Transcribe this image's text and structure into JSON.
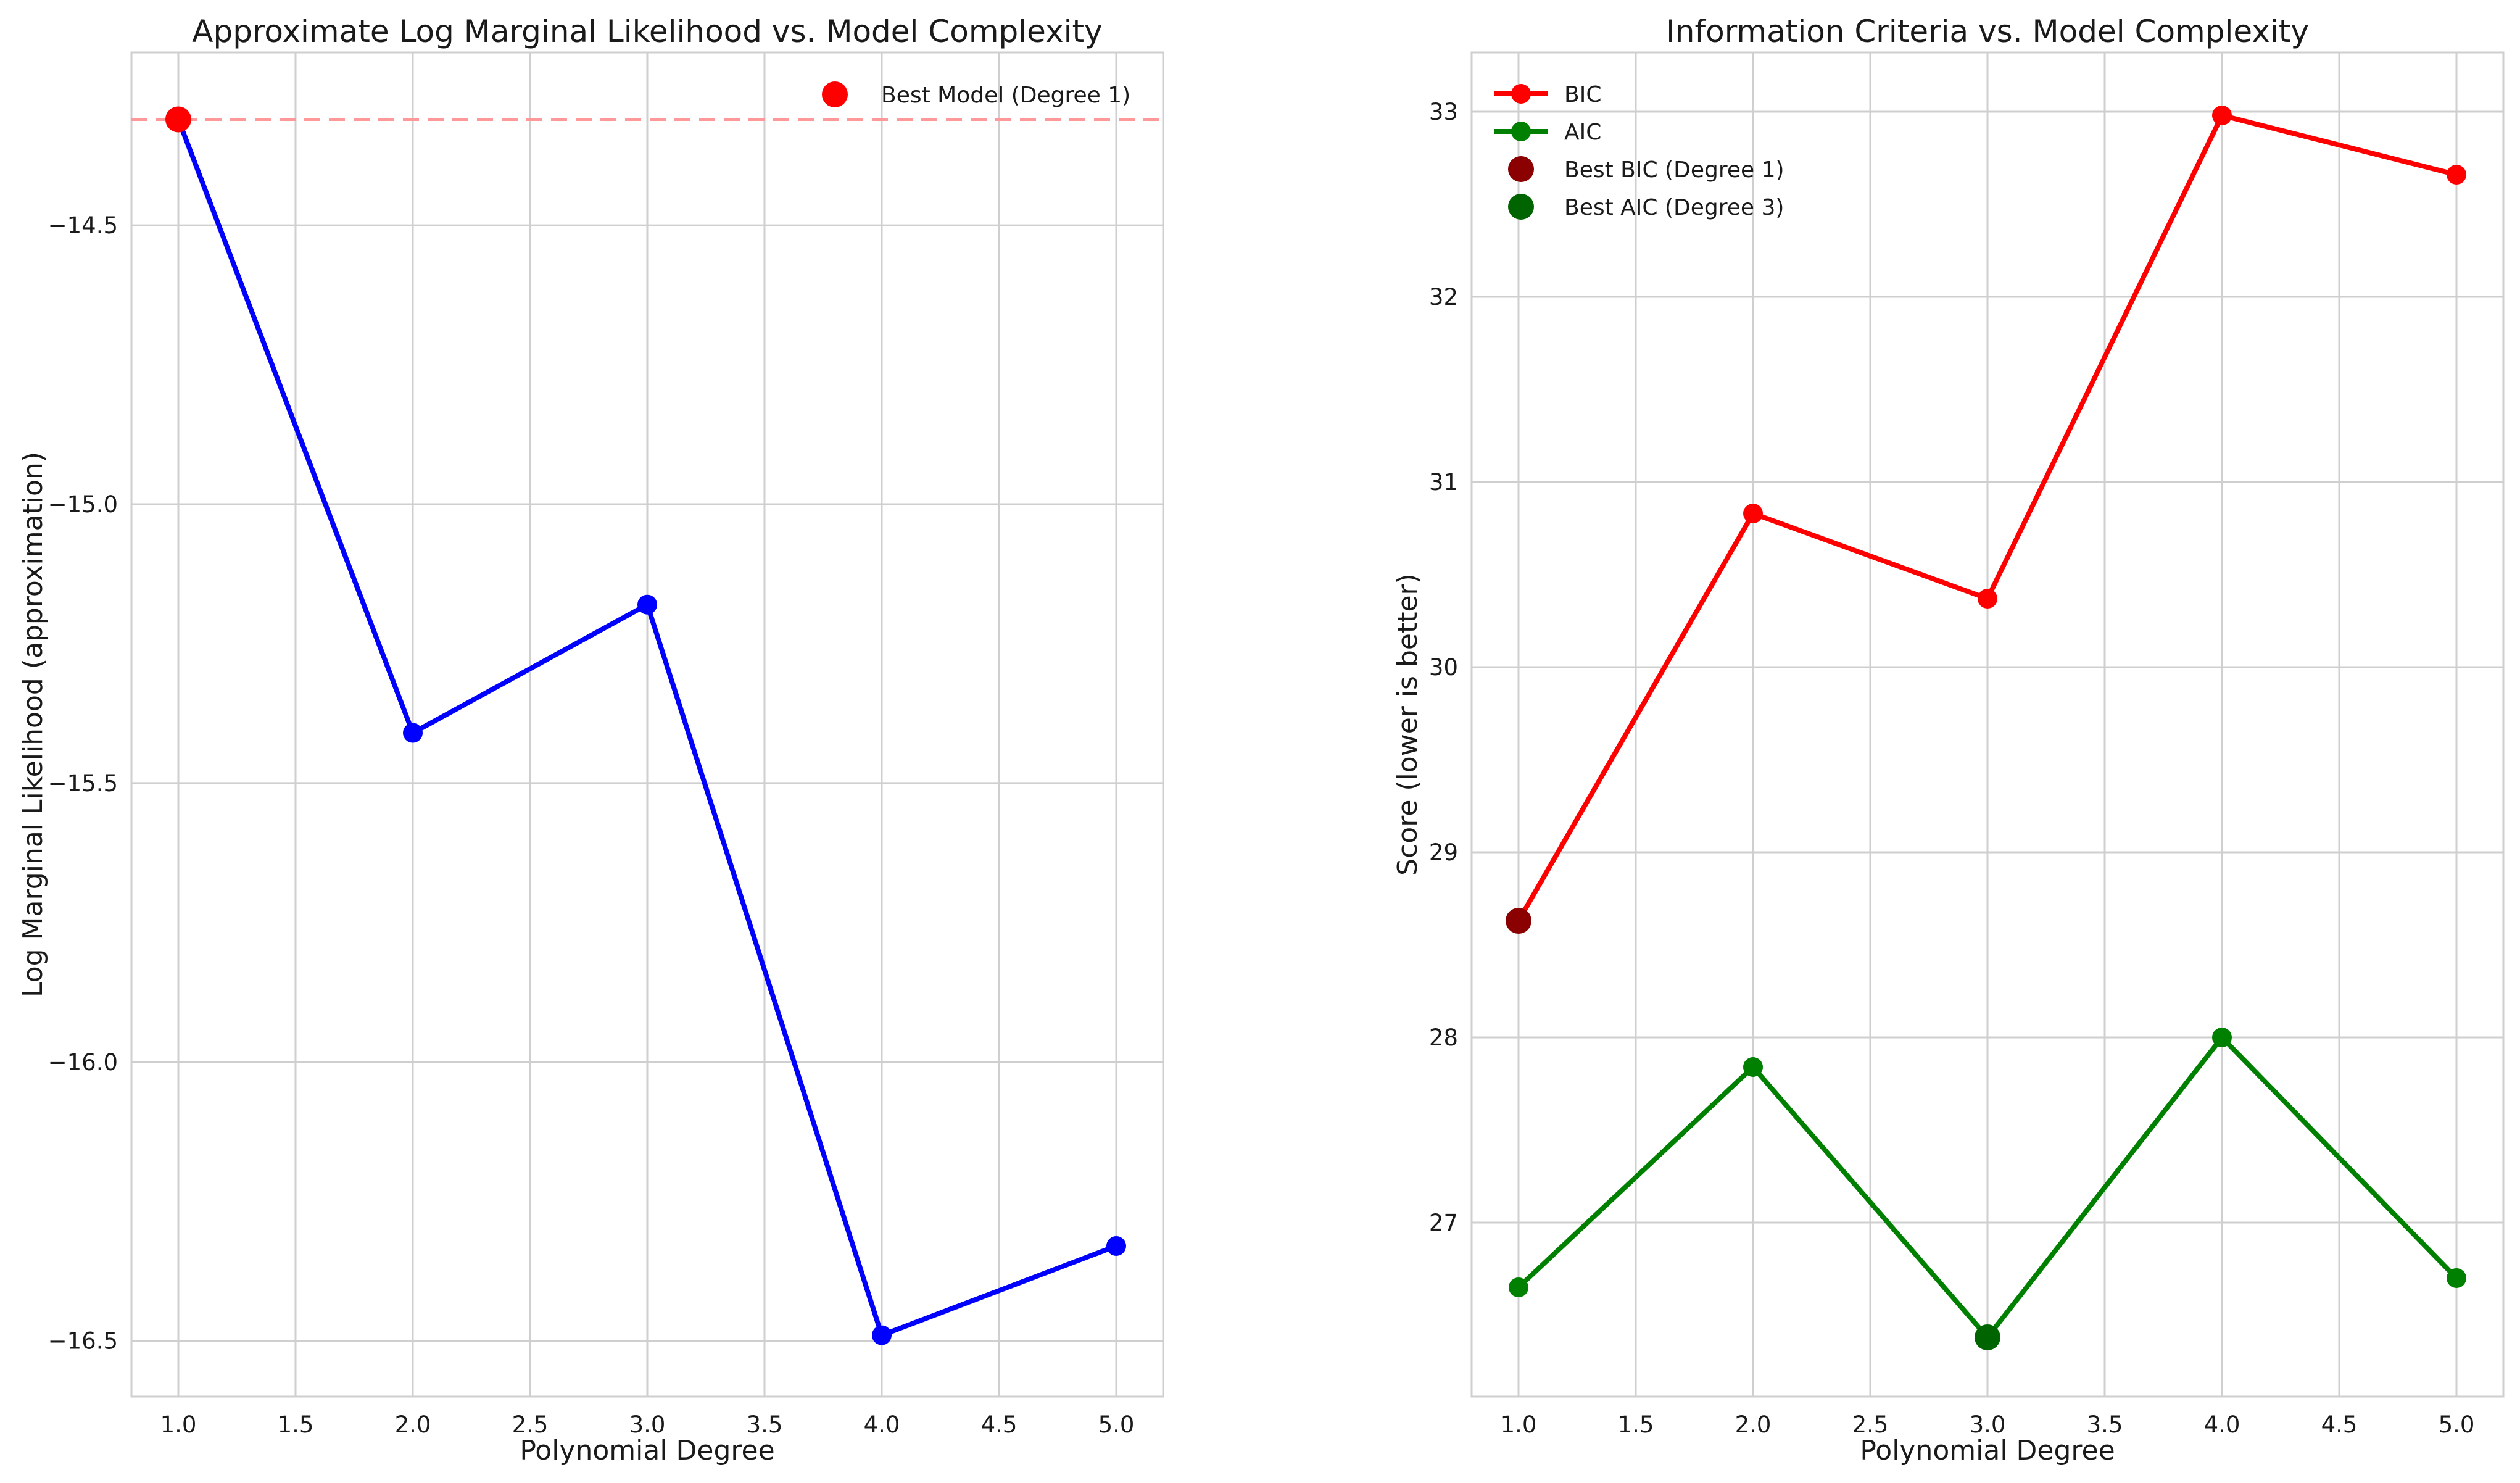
{
  "chart_data": [
    {
      "type": "line",
      "title": "Approximate Log Marginal Likelihood vs. Model Complexity",
      "xlabel": "Polynomial Degree",
      "ylabel": "Log Marginal Likelihood (approximation)",
      "xlim": [
        0.8,
        5.2
      ],
      "ylim": [
        -16.6,
        -14.19
      ],
      "xticks": [
        1.0,
        1.5,
        2.0,
        2.5,
        3.0,
        3.5,
        4.0,
        4.5,
        5.0
      ],
      "xtick_labels": [
        "1.0",
        "1.5",
        "2.0",
        "2.5",
        "3.0",
        "3.5",
        "4.0",
        "4.5",
        "5.0"
      ],
      "yticks": [
        -16.5,
        -16.0,
        -15.5,
        -15.0,
        -14.5
      ],
      "ytick_labels": [
        "−16.5",
        "−16.0",
        "−15.5",
        "−15.0",
        "−14.5"
      ],
      "grid": true,
      "legend_position": "top-right",
      "series": [
        {
          "x": [
            1,
            2,
            3,
            4,
            5
          ],
          "values": [
            -14.31,
            -15.41,
            -15.18,
            -16.49,
            -16.33
          ],
          "color": "#0000ff"
        }
      ],
      "reference_line": {
        "y": -14.31,
        "color": "#ff9999",
        "style": "dashed"
      },
      "highlight": {
        "name": "Best Model (Degree 1)",
        "x": 1,
        "y": -14.31,
        "color": "#ff0000"
      }
    },
    {
      "type": "line",
      "title": "Information Criteria vs. Model Complexity",
      "xlabel": "Polynomial Degree",
      "ylabel": "Score (lower is better)",
      "xlim": [
        0.8,
        5.2
      ],
      "ylim": [
        26.06,
        33.32
      ],
      "xticks": [
        1.0,
        1.5,
        2.0,
        2.5,
        3.0,
        3.5,
        4.0,
        4.5,
        5.0
      ],
      "xtick_labels": [
        "1.0",
        "1.5",
        "2.0",
        "2.5",
        "3.0",
        "3.5",
        "4.0",
        "4.5",
        "5.0"
      ],
      "yticks": [
        27,
        28,
        29,
        30,
        31,
        32,
        33
      ],
      "ytick_labels": [
        "27",
        "28",
        "29",
        "30",
        "31",
        "32",
        "33"
      ],
      "grid": true,
      "legend_position": "top-left",
      "series": [
        {
          "name": "BIC",
          "x": [
            1,
            2,
            3,
            4,
            5
          ],
          "values": [
            28.63,
            30.83,
            30.37,
            32.98,
            32.66
          ],
          "color": "#ff0000"
        },
        {
          "name": "AIC",
          "x": [
            1,
            2,
            3,
            4,
            5
          ],
          "values": [
            26.65,
            27.84,
            26.38,
            28.0,
            26.7
          ],
          "color": "#008000"
        }
      ],
      "highlights": [
        {
          "name": "Best BIC (Degree 1)",
          "x": 1,
          "y": 28.63,
          "color": "#8b0000"
        },
        {
          "name": "Best AIC (Degree 3)",
          "x": 3,
          "y": 26.38,
          "color": "#006400"
        }
      ]
    }
  ]
}
